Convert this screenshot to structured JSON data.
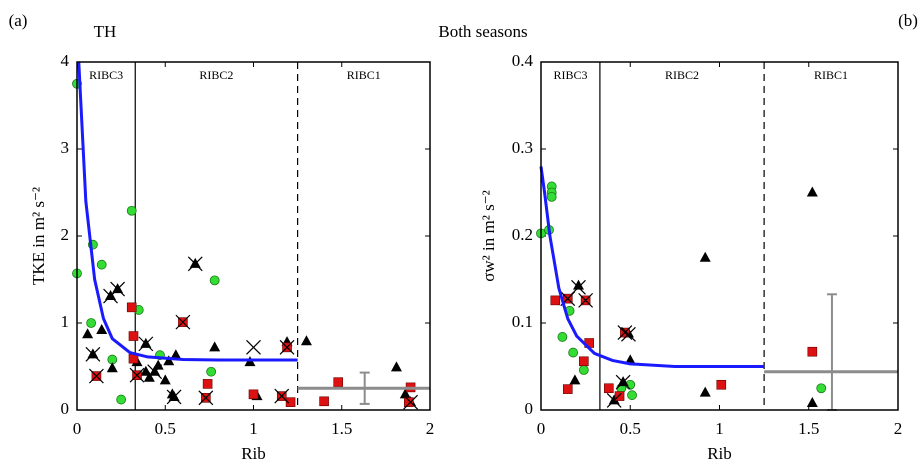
{
  "title": "Both seasons",
  "chart_data": [
    {
      "type": "scatter",
      "panel_label": "(a)",
      "annotation": "TH",
      "xlabel": "Rib",
      "ylabel": "TKE in m² s⁻²",
      "xlim": [
        0,
        2
      ],
      "ylim": [
        0,
        4
      ],
      "xticks": [
        0,
        0.5,
        1,
        1.5,
        2
      ],
      "yticks": [
        0,
        1,
        2,
        3,
        4
      ],
      "regions": [
        "RIBC3",
        "RIBC2",
        "RIBC1"
      ],
      "vlines": [
        {
          "value": 0.33,
          "style": "solid"
        },
        {
          "value": 1.25,
          "style": "dashed"
        }
      ],
      "series": [
        {
          "marker": "circle",
          "color": "#33dd33",
          "x": [
            0,
            0,
            0.09,
            0.14,
            0.08,
            0.2,
            0.25,
            0.31,
            0.35,
            0.78,
            0.76,
            0.47
          ],
          "values": [
            3.75,
            1.57,
            1.9,
            1.67,
            1.0,
            0.58,
            0.12,
            2.29,
            1.15,
            1.49,
            0.44,
            0.63
          ]
        },
        {
          "marker": "triangle",
          "color": "#000000",
          "x": [
            0.06,
            0.14,
            0.2,
            0.19,
            0.23,
            0.34,
            0.39,
            0.41,
            0.44,
            0.46,
            0.5,
            0.56,
            0.54,
            0.78,
            1.02,
            0.98,
            1.3,
            1.19,
            1.81,
            1.86,
            1.89,
            0.52,
            0.09,
            0.39,
            0.67,
            0.55
          ],
          "values": [
            0.87,
            0.92,
            0.48,
            1.31,
            1.39,
            0.55,
            0.44,
            0.37,
            0.44,
            0.51,
            0.34,
            0.63,
            0.18,
            0.72,
            0.16,
            0.55,
            0.79,
            0.78,
            0.49,
            0.18,
            0.09,
            0.56,
            0.64,
            0.76,
            1.68,
            0.15
          ]
        },
        {
          "marker": "square",
          "color": "#dd1111",
          "x": [
            0.11,
            0.32,
            0.32,
            0.34,
            0.6,
            0.74,
            0.73,
            1.0,
            1.19,
            1.21,
            1.48,
            1.4,
            1.89,
            1.88,
            0.31,
            1.16
          ],
          "values": [
            0.39,
            0.85,
            0.59,
            0.4,
            1.01,
            0.3,
            0.14,
            0.18,
            0.72,
            0.09,
            0.32,
            0.1,
            0.26,
            0.09,
            1.18,
            0.16
          ]
        },
        {
          "marker": "x",
          "color": "#000000",
          "x": [
            0.09,
            0.19,
            0.23,
            0.39,
            0.67,
            0.55,
            1.0,
            1.19,
            0.73,
            0.11,
            0.34,
            0.6,
            1.16,
            1.89,
            0.44
          ],
          "values": [
            0.64,
            1.31,
            1.39,
            0.76,
            1.68,
            0.15,
            0.72,
            0.72,
            0.14,
            0.39,
            0.4,
            1.01,
            0.16,
            0.09,
            0.44
          ]
        },
        {
          "marker": "line",
          "color": "#1a1aff",
          "x": [
            0.01,
            0.02,
            0.05,
            0.1,
            0.15,
            0.2,
            0.3,
            0.4,
            0.6,
            0.8,
            1.0,
            1.25
          ],
          "values": [
            4,
            3.6,
            2.4,
            1.5,
            1.05,
            0.82,
            0.66,
            0.61,
            0.58,
            0.575,
            0.575,
            0.575
          ]
        }
      ],
      "errorbar": {
        "color": "#8c8c8c",
        "x": 1.63,
        "y": 0.25,
        "xlow": 1.25,
        "xhigh": 2,
        "ylow": 0.07,
        "yhigh": 0.43
      }
    },
    {
      "type": "scatter",
      "panel_label": "(b)",
      "xlabel": "Rib",
      "ylabel": "σw² in m² s⁻²",
      "xlim": [
        0,
        2
      ],
      "ylim": [
        0,
        0.4
      ],
      "xticks": [
        0,
        0.5,
        1,
        1.5,
        2
      ],
      "yticks": [
        0,
        0.1,
        0.2,
        0.3,
        0.4
      ],
      "regions": [
        "RIBC3",
        "RIBC2",
        "RIBC1"
      ],
      "vlines": [
        {
          "value": 0.33,
          "style": "solid"
        },
        {
          "value": 1.25,
          "style": "dashed"
        }
      ],
      "series": [
        {
          "marker": "circle",
          "color": "#33dd33",
          "x": [
            0.06,
            0.06,
            0.06,
            0,
            0.045,
            0.12,
            0.16,
            0.18,
            0.24,
            0.5,
            0.51,
            0.45,
            1.57
          ],
          "values": [
            0.257,
            0.25,
            0.245,
            0.203,
            0.207,
            0.084,
            0.114,
            0.066,
            0.046,
            0.029,
            0.017,
            0.025,
            0.025
          ]
        },
        {
          "marker": "triangle",
          "color": "#000000",
          "x": [
            0.21,
            0.19,
            0.41,
            0.46,
            0.5,
            0.49,
            0.92,
            0.92,
            1.52,
            1.52
          ],
          "values": [
            0.143,
            0.034,
            0.011,
            0.032,
            0.057,
            0.088,
            0.175,
            0.02,
            0.25,
            0.008
          ]
        },
        {
          "marker": "square",
          "color": "#dd1111",
          "x": [
            0.08,
            0.15,
            0.25,
            0.27,
            0.24,
            0.15,
            0.38,
            0.44,
            0.47,
            1.01,
            1.52
          ],
          "values": [
            0.126,
            0.128,
            0.126,
            0.077,
            0.056,
            0.024,
            0.025,
            0.016,
            0.089,
            0.029,
            0.067
          ]
        },
        {
          "marker": "x",
          "color": "#000000",
          "x": [
            0.21,
            0.25,
            0.47,
            0.49,
            0.46,
            0.41,
            0.15
          ],
          "values": [
            0.141,
            0.126,
            0.089,
            0.087,
            0.032,
            0.011,
            0.128
          ]
        },
        {
          "marker": "line",
          "color": "#1a1aff",
          "x": [
            0,
            0.02,
            0.05,
            0.1,
            0.15,
            0.2,
            0.3,
            0.4,
            0.5,
            0.75,
            1.25
          ],
          "values": [
            0.28,
            0.25,
            0.2,
            0.14,
            0.105,
            0.085,
            0.065,
            0.057,
            0.053,
            0.05,
            0.05
          ]
        }
      ],
      "errorbar": {
        "color": "#8c8c8c",
        "x": 1.63,
        "y": 0.044,
        "xlow": 1.25,
        "xhigh": 2,
        "ylow": 0,
        "yhigh": 0.133
      }
    }
  ]
}
